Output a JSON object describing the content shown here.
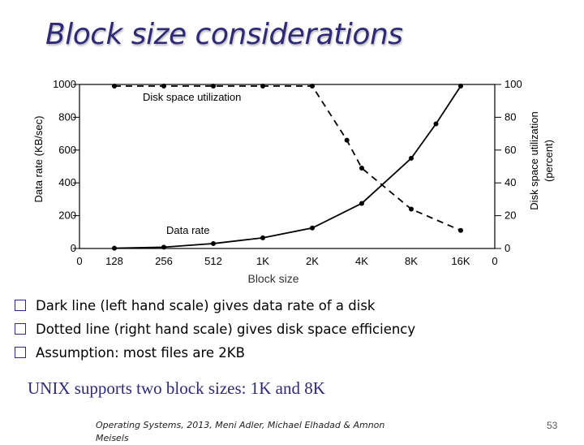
{
  "slide": {
    "title": "Block size considerations",
    "bullets": [
      "Dark line (left hand scale) gives data rate of a disk",
      "Dotted line (right hand scale) gives disk space efficiency",
      "Assumption: most files are 2KB"
    ],
    "note": "UNIX supports two block sizes: 1K and 8K",
    "footer": "Operating Systems, 2013, Meni Adler, Michael Elhadad & Amnon Meisels",
    "page_number": "53"
  },
  "chart_data": {
    "type": "line",
    "categories": [
      "128",
      "256",
      "512",
      "1K",
      "2K",
      "4K",
      "8K",
      "16K"
    ],
    "xlabel": "Block size",
    "ylabel": "Data rate (KB/sec)",
    "y2label": "Disk space utilization (percent)",
    "ylim": [
      0,
      1000
    ],
    "y2lim": [
      0,
      100
    ],
    "yticks": [
      0,
      200,
      400,
      600,
      800,
      1000
    ],
    "y2ticks": [
      0,
      20,
      40,
      60,
      80,
      100
    ],
    "x_extra_tick_labels": {
      "left": "0",
      "right": "0"
    },
    "grid": false,
    "series": [
      {
        "name": "Data rate",
        "axis": "left",
        "style": "solid",
        "x": [
          0,
          1,
          2,
          3,
          4,
          5,
          6,
          6.5,
          7
        ],
        "values": [
          2,
          8,
          30,
          65,
          125,
          275,
          550,
          760,
          990
        ]
      },
      {
        "name": "Disk space utilization",
        "axis": "right",
        "style": "dashed",
        "x": [
          0,
          1,
          2,
          3,
          4,
          4.7,
          5,
          6,
          7
        ],
        "values": [
          99,
          99,
          99,
          99,
          99,
          66,
          49,
          24,
          11
        ]
      }
    ]
  }
}
